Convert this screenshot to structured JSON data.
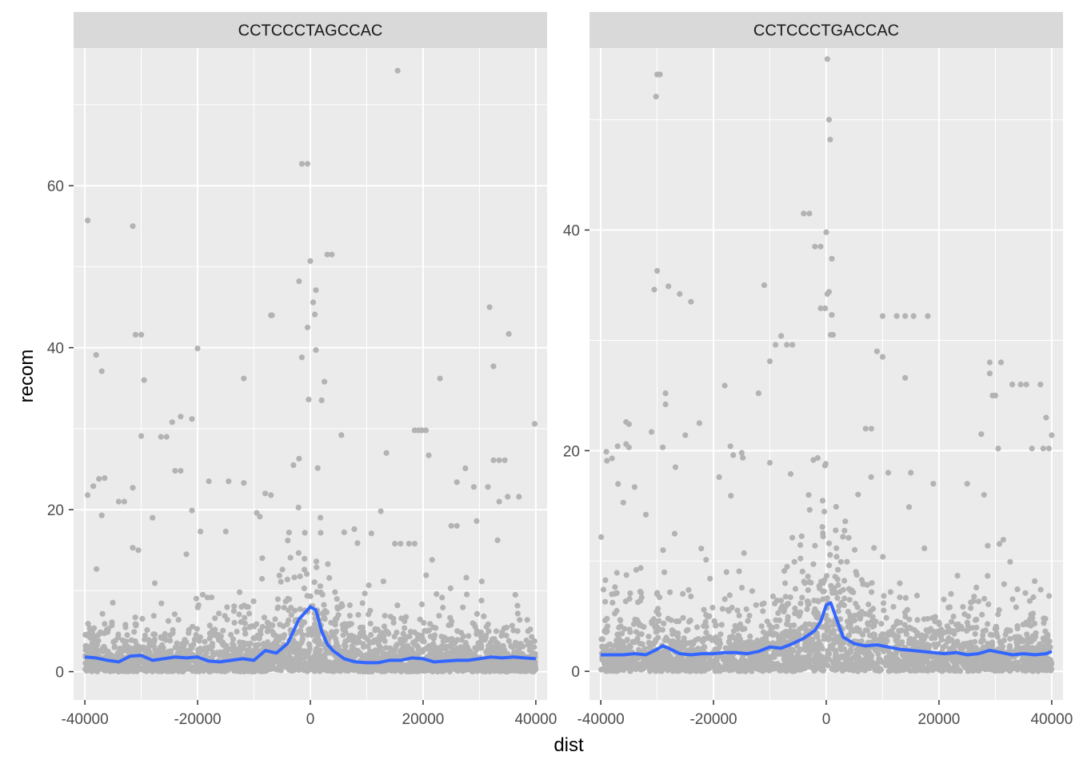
{
  "chart_data": {
    "type": "scatter",
    "xlabel": "dist",
    "ylabel": "recom",
    "colors": {
      "points": "#b3b3b3",
      "smooth": "#3366ff",
      "panel_bg": "#ebebeb",
      "strip_bg": "#d9d9d9",
      "grid": "#ffffff"
    },
    "panels": [
      {
        "strip": "CCTCCCTAGCCAC",
        "xlim": [
          -42000,
          42000
        ],
        "ylim": [
          -3.5,
          77
        ],
        "xticks": [
          -40000,
          -20000,
          0,
          20000,
          40000
        ],
        "xtick_labels": [
          "-40000",
          "-20000",
          "0",
          "20000",
          "40000"
        ],
        "yticks": [
          0,
          20,
          40,
          60
        ],
        "ytick_labels": [
          "0",
          "20",
          "40",
          "60"
        ],
        "smooth": [
          [
            -40000,
            1.8
          ],
          [
            -38000,
            1.7
          ],
          [
            -36000,
            1.4
          ],
          [
            -34000,
            1.2
          ],
          [
            -32000,
            1.9
          ],
          [
            -30000,
            2.0
          ],
          [
            -28000,
            1.4
          ],
          [
            -26000,
            1.6
          ],
          [
            -24000,
            1.8
          ],
          [
            -22000,
            1.7
          ],
          [
            -20000,
            1.8
          ],
          [
            -18000,
            1.3
          ],
          [
            -16000,
            1.2
          ],
          [
            -14000,
            1.4
          ],
          [
            -12000,
            1.6
          ],
          [
            -10000,
            1.4
          ],
          [
            -8000,
            2.6
          ],
          [
            -6000,
            2.3
          ],
          [
            -4000,
            3.5
          ],
          [
            -2000,
            6.5
          ],
          [
            0,
            8.0
          ],
          [
            1000,
            7.6
          ],
          [
            2000,
            5.0
          ],
          [
            3000,
            3.4
          ],
          [
            4000,
            2.6
          ],
          [
            6000,
            1.6
          ],
          [
            8000,
            1.2
          ],
          [
            10000,
            1.1
          ],
          [
            12000,
            1.1
          ],
          [
            14000,
            1.4
          ],
          [
            16000,
            1.4
          ],
          [
            18000,
            1.7
          ],
          [
            20000,
            1.6
          ],
          [
            22000,
            1.2
          ],
          [
            24000,
            1.3
          ],
          [
            26000,
            1.4
          ],
          [
            28000,
            1.4
          ],
          [
            30000,
            1.6
          ],
          [
            32000,
            1.8
          ],
          [
            34000,
            1.7
          ],
          [
            36000,
            1.8
          ],
          [
            38000,
            1.7
          ],
          [
            40000,
            1.6
          ]
        ],
        "outliers": [
          [
            -39500,
            55.7
          ],
          [
            -31500,
            55.0
          ],
          [
            15500,
            74.2
          ],
          [
            -1500,
            62.7
          ],
          [
            -500,
            62.7
          ],
          [
            0,
            50.7
          ],
          [
            3000,
            51.5
          ],
          [
            3800,
            51.5
          ],
          [
            -2000,
            48.2
          ],
          [
            1000,
            47.1
          ],
          [
            500,
            45.6
          ],
          [
            800,
            44.1
          ],
          [
            -7000,
            44.0
          ],
          [
            -6800,
            44.0
          ],
          [
            31800,
            45.0
          ],
          [
            -31000,
            41.6
          ],
          [
            -30000,
            41.6
          ],
          [
            35200,
            41.7
          ],
          [
            -500,
            42.5
          ],
          [
            -20000,
            39.9
          ],
          [
            -38000,
            39.1
          ],
          [
            -1500,
            38.8
          ],
          [
            1000,
            39.7
          ],
          [
            -37000,
            37.1
          ],
          [
            32500,
            37.7
          ],
          [
            -29500,
            36.0
          ],
          [
            -11800,
            36.2
          ],
          [
            23000,
            36.2
          ],
          [
            -30000,
            29.1
          ],
          [
            -23000,
            31.5
          ],
          [
            -24500,
            30.8
          ],
          [
            2500,
            35.8
          ],
          [
            2000,
            33.5
          ],
          [
            -300,
            33.6
          ],
          [
            5500,
            29.2
          ],
          [
            18500,
            29.8
          ],
          [
            19200,
            29.8
          ],
          [
            19800,
            29.8
          ],
          [
            20500,
            29.8
          ],
          [
            21000,
            26.7
          ],
          [
            13500,
            27.0
          ],
          [
            27500,
            25.1
          ],
          [
            39800,
            30.6
          ],
          [
            -39500,
            21.8
          ],
          [
            -38500,
            22.9
          ],
          [
            -37500,
            23.8
          ],
          [
            -36500,
            23.9
          ],
          [
            -31500,
            22.7
          ],
          [
            -26500,
            29.0
          ],
          [
            -25500,
            29.0
          ],
          [
            -24000,
            24.8
          ],
          [
            -23000,
            24.8
          ],
          [
            -21000,
            31.2
          ],
          [
            -18000,
            23.5
          ],
          [
            -14500,
            23.5
          ],
          [
            -11800,
            23.3
          ],
          [
            -8000,
            22.0
          ],
          [
            -7000,
            21.8
          ],
          [
            -3000,
            25.5
          ],
          [
            -2000,
            26.3
          ],
          [
            26000,
            23.4
          ],
          [
            29000,
            22.8
          ],
          [
            31500,
            22.8
          ],
          [
            32500,
            26.1
          ],
          [
            33500,
            26.1
          ],
          [
            34500,
            26.1
          ],
          [
            33500,
            21.0
          ],
          [
            35000,
            21.6
          ],
          [
            37000,
            21.6
          ],
          [
            -37000,
            19.3
          ],
          [
            -34000,
            21.0
          ],
          [
            -33000,
            21.0
          ],
          [
            -28000,
            19.0
          ],
          [
            -21000,
            19.9
          ],
          [
            -19500,
            17.3
          ],
          [
            -15000,
            17.3
          ],
          [
            -9500,
            19.6
          ],
          [
            12500,
            19.8
          ],
          [
            25000,
            18.0
          ],
          [
            26000,
            18.0
          ],
          [
            29500,
            18.6
          ],
          [
            15000,
            15.8
          ],
          [
            16000,
            15.8
          ],
          [
            17500,
            15.8
          ],
          [
            18500,
            15.8
          ],
          [
            -31500,
            15.3
          ],
          [
            -30500,
            15.0
          ],
          [
            -22000,
            14.5
          ],
          [
            6000,
            17.2
          ],
          [
            -4000,
            16.2
          ]
        ]
      },
      {
        "strip": "CCTCCCTGACCAC",
        "xlim": [
          -42000,
          42000
        ],
        "ylim": [
          -2.6,
          56.5
        ],
        "xticks": [
          -40000,
          -20000,
          0,
          20000,
          40000
        ],
        "xtick_labels": [
          "-40000",
          "-20000",
          "0",
          "20000",
          "40000"
        ],
        "yticks": [
          0,
          20,
          40
        ],
        "ytick_labels": [
          "0",
          "20",
          "40"
        ],
        "smooth": [
          [
            -40000,
            1.5
          ],
          [
            -38000,
            1.5
          ],
          [
            -36000,
            1.5
          ],
          [
            -34000,
            1.6
          ],
          [
            -32000,
            1.5
          ],
          [
            -30000,
            2.0
          ],
          [
            -29000,
            2.3
          ],
          [
            -28000,
            2.1
          ],
          [
            -26000,
            1.6
          ],
          [
            -24000,
            1.5
          ],
          [
            -22000,
            1.6
          ],
          [
            -20000,
            1.6
          ],
          [
            -18000,
            1.7
          ],
          [
            -16000,
            1.7
          ],
          [
            -14000,
            1.6
          ],
          [
            -12000,
            1.8
          ],
          [
            -10000,
            2.2
          ],
          [
            -8000,
            2.1
          ],
          [
            -6000,
            2.5
          ],
          [
            -4000,
            3.0
          ],
          [
            -2000,
            3.7
          ],
          [
            -1000,
            4.5
          ],
          [
            0,
            6.0
          ],
          [
            800,
            6.2
          ],
          [
            2000,
            4.5
          ],
          [
            3000,
            3.1
          ],
          [
            5000,
            2.5
          ],
          [
            7000,
            2.3
          ],
          [
            9000,
            2.4
          ],
          [
            11000,
            2.2
          ],
          [
            13000,
            2.0
          ],
          [
            15000,
            1.9
          ],
          [
            17000,
            1.8
          ],
          [
            19000,
            1.7
          ],
          [
            21000,
            1.6
          ],
          [
            23000,
            1.7
          ],
          [
            25000,
            1.5
          ],
          [
            27000,
            1.6
          ],
          [
            29000,
            1.9
          ],
          [
            31000,
            1.7
          ],
          [
            33000,
            1.5
          ],
          [
            35000,
            1.6
          ],
          [
            37000,
            1.5
          ],
          [
            39000,
            1.6
          ],
          [
            40000,
            1.8
          ]
        ],
        "outliers": [
          [
            200,
            55.5
          ],
          [
            -30000,
            54.1
          ],
          [
            -29500,
            54.1
          ],
          [
            -30200,
            52.1
          ],
          [
            500,
            50.0
          ],
          [
            700,
            48.2
          ],
          [
            -4000,
            41.5
          ],
          [
            -3000,
            41.5
          ],
          [
            0,
            39.8
          ],
          [
            -1000,
            38.5
          ],
          [
            -2000,
            38.5
          ],
          [
            1000,
            37.4
          ],
          [
            -30000,
            36.3
          ],
          [
            -30500,
            34.6
          ],
          [
            -28000,
            34.9
          ],
          [
            -26000,
            34.2
          ],
          [
            -24000,
            33.5
          ],
          [
            -11000,
            35.0
          ],
          [
            200,
            34.2
          ],
          [
            500,
            34.4
          ],
          [
            -200,
            32.9
          ],
          [
            -1000,
            32.9
          ],
          [
            1000,
            32.3
          ],
          [
            800,
            30.5
          ],
          [
            1200,
            30.5
          ],
          [
            -8000,
            30.4
          ],
          [
            -9000,
            29.6
          ],
          [
            -7000,
            29.6
          ],
          [
            -6000,
            29.6
          ],
          [
            -10000,
            28.1
          ],
          [
            9000,
            29.0
          ],
          [
            10000,
            28.5
          ],
          [
            10000,
            32.2
          ],
          [
            12500,
            32.2
          ],
          [
            14000,
            32.2
          ],
          [
            15500,
            32.2
          ],
          [
            18000,
            32.2
          ],
          [
            14000,
            26.6
          ],
          [
            29000,
            28.0
          ],
          [
            29000,
            27.0
          ],
          [
            31000,
            28.0
          ],
          [
            29500,
            25.0
          ],
          [
            30000,
            25.0
          ],
          [
            33000,
            26.0
          ],
          [
            34500,
            26.0
          ],
          [
            35500,
            26.0
          ],
          [
            38000,
            26.0
          ],
          [
            39000,
            23.0
          ],
          [
            -28500,
            25.2
          ],
          [
            -28500,
            24.2
          ],
          [
            -18000,
            25.9
          ],
          [
            -12000,
            25.2
          ],
          [
            -35500,
            22.6
          ],
          [
            -35000,
            22.4
          ],
          [
            -31000,
            21.7
          ],
          [
            -29000,
            20.3
          ],
          [
            -22500,
            22.5
          ],
          [
            -17000,
            20.4
          ],
          [
            -16500,
            19.6
          ],
          [
            -15000,
            19.8
          ],
          [
            -39000,
            19.9
          ],
          [
            -38000,
            19.3
          ],
          [
            -37000,
            20.4
          ],
          [
            -35500,
            20.6
          ],
          [
            -35000,
            20.3
          ],
          [
            -25000,
            21.4
          ],
          [
            7000,
            22.0
          ],
          [
            8000,
            22.0
          ],
          [
            11000,
            18.0
          ],
          [
            15000,
            18.0
          ],
          [
            19000,
            17.0
          ],
          [
            27500,
            21.5
          ],
          [
            30500,
            20.2
          ],
          [
            36500,
            20.2
          ],
          [
            38500,
            20.2
          ],
          [
            39500,
            20.2
          ],
          [
            40000,
            21.4
          ],
          [
            -36000,
            15.3
          ],
          [
            -34000,
            16.7
          ],
          [
            -32000,
            14.2
          ],
          [
            -19000,
            17.6
          ],
          [
            -10000,
            18.9
          ],
          [
            25000,
            17.0
          ],
          [
            28000,
            16.0
          ]
        ]
      }
    ]
  }
}
